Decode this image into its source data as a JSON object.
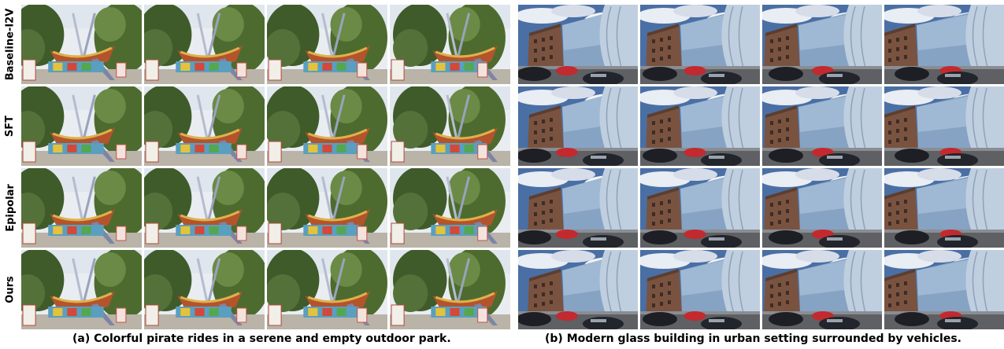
{
  "row_labels": [
    "Baseline-I2V",
    "SFT",
    "Epipolar",
    "Ours"
  ],
  "panels": [
    {
      "id": "a",
      "scene": "park",
      "caption": "(a) Colorful pirate rides in a serene and empty outdoor park."
    },
    {
      "id": "b",
      "scene": "city",
      "caption": "(b)  Modern glass building in urban setting surrounded by vehicles."
    }
  ],
  "grid": {
    "rows": 4,
    "cols": 4
  }
}
